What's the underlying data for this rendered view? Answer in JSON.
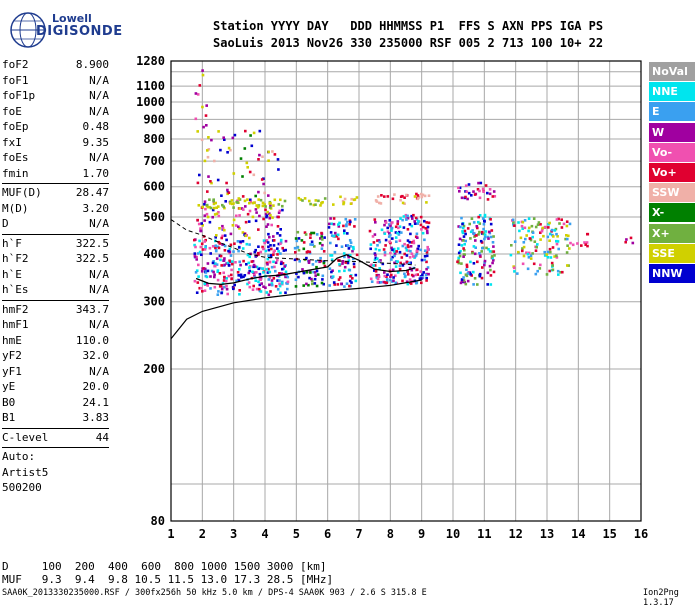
{
  "logo": {
    "line1": "Lowell",
    "line2": "DIGISONDE"
  },
  "header": {
    "labels": "Station YYYY DAY   DDD HHMMSS P1  FFS S AXN PPS IGA PS",
    "values": "SaoLuis 2013 Nov26 330 235000 RSF 005 2 713 100 10+ 22"
  },
  "params_group1": [
    {
      "name": "foF2",
      "value": "8.900"
    },
    {
      "name": "foF1",
      "value": "N/A"
    },
    {
      "name": "foF1p",
      "value": "N/A"
    },
    {
      "name": "foE",
      "value": "N/A"
    },
    {
      "name": "foEp",
      "value": "0.48"
    },
    {
      "name": "fxI",
      "value": "9.35"
    },
    {
      "name": "foEs",
      "value": "N/A"
    },
    {
      "name": "fmin",
      "value": "1.70"
    }
  ],
  "params_group2": [
    {
      "name": "MUF(D)",
      "value": "28.47"
    },
    {
      "name": "M(D)",
      "value": "3.20"
    },
    {
      "name": "D",
      "value": "N/A"
    }
  ],
  "params_group3": [
    {
      "name": "h`F",
      "value": "322.5"
    },
    {
      "name": "h`F2",
      "value": "322.5"
    },
    {
      "name": "h`E",
      "value": "N/A"
    },
    {
      "name": "h`Es",
      "value": "N/A"
    }
  ],
  "params_group4": [
    {
      "name": "hmF2",
      "value": "343.7"
    },
    {
      "name": "hmF1",
      "value": "N/A"
    },
    {
      "name": "hmE",
      "value": "110.0"
    },
    {
      "name": "yF2",
      "value": "32.0"
    },
    {
      "name": "yF1",
      "value": "N/A"
    },
    {
      "name": "yE",
      "value": "20.0"
    },
    {
      "name": "B0",
      "value": "24.1"
    },
    {
      "name": "B1",
      "value": "3.83"
    }
  ],
  "clevel": {
    "name": "C-level",
    "value": "44"
  },
  "auto": {
    "line1": "Auto:",
    "line2": "Artist5",
    "line3": "500200"
  },
  "legend": [
    {
      "label": "NoVal",
      "color": "#a0a0a0"
    },
    {
      "label": "NNE",
      "color": "#00e5ee"
    },
    {
      "label": "E",
      "color": "#3aa0f0"
    },
    {
      "label": "W",
      "color": "#a000a0"
    },
    {
      "label": "Vo-",
      "color": "#f050b0"
    },
    {
      "label": "Vo+",
      "color": "#e00030"
    },
    {
      "label": "SSW",
      "color": "#f0b0a8"
    },
    {
      "label": "X-",
      "color": "#008000"
    },
    {
      "label": "X+",
      "color": "#70b040"
    },
    {
      "label": "SSE",
      "color": "#d0d000"
    },
    {
      "label": "NNW",
      "color": "#0000d0"
    }
  ],
  "bottom": {
    "d_row": "D     100  200  400  600  800 1000 1500 3000 [km]",
    "muf_row": "MUF   9.3  9.4  9.8 10.5 11.5 13.0 17.3 28.5 [MHz]"
  },
  "footer": {
    "left": "SAA0K_2013330235000.RSF / 300fx256h 50 kHz 5.0 km / DPS-4 SAA0K 903 / 2.6 S 315.8 E",
    "right": "Ion2Png 1.3.17"
  },
  "chart_data": {
    "type": "scatter",
    "x_ticks": [
      1,
      2,
      3,
      4,
      5,
      6,
      7,
      8,
      9,
      10,
      11,
      12,
      13,
      14,
      15,
      16
    ],
    "y_ticks": [
      80,
      200,
      300,
      400,
      500,
      600,
      700,
      800,
      900,
      1000,
      1100,
      1280
    ],
    "xlim": [
      1,
      16
    ],
    "y_scale": "log",
    "ylim": [
      80,
      1280
    ],
    "grid": true,
    "echo_regions": [
      {
        "x": [
          1.7,
          4.7
        ],
        "y": [
          315,
          440
        ],
        "colors": [
          "#e00030",
          "#f050b0",
          "#a000a0",
          "#0000d0",
          "#3aa0f0",
          "#00e5ee"
        ],
        "density": 0.55
      },
      {
        "x": [
          1.8,
          4.6
        ],
        "y": [
          440,
          560
        ],
        "colors": [
          "#a000a0",
          "#e00030",
          "#0000d0",
          "#d0d000",
          "#f050b0"
        ],
        "density": 0.25
      },
      {
        "x": [
          1.8,
          4.6
        ],
        "y": [
          530,
          560
        ],
        "colors": [
          "#d0d000",
          "#d0d000",
          "#70b040"
        ],
        "density": 0.6
      },
      {
        "x": [
          1.8,
          4.4
        ],
        "y": [
          560,
          850
        ],
        "colors": [
          "#a000a0",
          "#d0d000",
          "#e00030",
          "#008000",
          "#0000d0",
          "#f0b0a8"
        ],
        "density": 0.1
      },
      {
        "x": [
          1.7,
          2.1
        ],
        "y": [
          850,
          1270
        ],
        "colors": [
          "#e00030",
          "#a000a0",
          "#d0d000",
          "#f050b0"
        ],
        "density": 0.12
      },
      {
        "x": [
          4.9,
          5.9
        ],
        "y": [
          330,
          460
        ],
        "colors": [
          "#e00030",
          "#0000d0",
          "#3aa0f0",
          "#a000a0",
          "#008000",
          "#70b040"
        ],
        "density": 0.45
      },
      {
        "x": [
          5.0,
          5.9
        ],
        "y": [
          540,
          570
        ],
        "colors": [
          "#d0d000",
          "#70b040"
        ],
        "density": 0.5
      },
      {
        "x": [
          6.0,
          6.9
        ],
        "y": [
          330,
          500
        ],
        "colors": [
          "#e00030",
          "#a000a0",
          "#0000d0",
          "#3aa0f0",
          "#00e5ee"
        ],
        "density": 0.45
      },
      {
        "x": [
          6.1,
          6.9
        ],
        "y": [
          540,
          570
        ],
        "colors": [
          "#d0d000",
          "#f0b0a8"
        ],
        "density": 0.5
      },
      {
        "x": [
          7.3,
          9.2
        ],
        "y": [
          335,
          510
        ],
        "colors": [
          "#3aa0f0",
          "#00e5ee",
          "#0000d0",
          "#e00030",
          "#a000a0",
          "#f050b0"
        ],
        "density": 0.55
      },
      {
        "x": [
          7.5,
          9.2
        ],
        "y": [
          545,
          580
        ],
        "colors": [
          "#f0b0a8",
          "#d0d000",
          "#e00030"
        ],
        "density": 0.5
      },
      {
        "x": [
          10.1,
          11.3
        ],
        "y": [
          335,
          510
        ],
        "colors": [
          "#3aa0f0",
          "#00e5ee",
          "#0000d0",
          "#a000a0",
          "#e00030",
          "#70b040"
        ],
        "density": 0.5
      },
      {
        "x": [
          10.1,
          11.3
        ],
        "y": [
          560,
          620
        ],
        "colors": [
          "#e00030",
          "#a000a0",
          "#f050b0",
          "#0000d0"
        ],
        "density": 0.45
      },
      {
        "x": [
          11.8,
          13.7
        ],
        "y": [
          355,
          500
        ],
        "colors": [
          "#3aa0f0",
          "#00e5ee",
          "#f050b0",
          "#e00030",
          "#d0d000",
          "#70b040"
        ],
        "density": 0.35
      },
      {
        "x": [
          13.7,
          14.3
        ],
        "y": [
          420,
          455
        ],
        "colors": [
          "#e00030",
          "#f050b0"
        ],
        "density": 0.35
      },
      {
        "x": [
          15.4,
          15.7
        ],
        "y": [
          420,
          445
        ],
        "colors": [
          "#e00030",
          "#a000a0"
        ],
        "density": 0.4
      }
    ],
    "trace_lower": [
      [
        1.0,
        240
      ],
      [
        1.5,
        270
      ],
      [
        2.0,
        283
      ],
      [
        3.0,
        298
      ],
      [
        4.0,
        307
      ],
      [
        5.0,
        314
      ],
      [
        6.0,
        320
      ],
      [
        7.0,
        325
      ],
      [
        8.0,
        331
      ],
      [
        9.0,
        342
      ]
    ],
    "trace_upper": [
      [
        1.0,
        492
      ],
      [
        1.5,
        462
      ],
      [
        2.0,
        448
      ],
      [
        2.5,
        430
      ],
      [
        3.0,
        415
      ],
      [
        3.5,
        400
      ],
      [
        4.0,
        392
      ],
      [
        4.5,
        390
      ],
      [
        5.0,
        388
      ],
      [
        5.5,
        386
      ],
      [
        6.0,
        384
      ],
      [
        6.5,
        383
      ],
      [
        7.0,
        382
      ],
      [
        7.5,
        380
      ],
      [
        8.0,
        378
      ],
      [
        8.5,
        376
      ],
      [
        8.8,
        374
      ]
    ],
    "trace_main": [
      [
        1.8,
        345
      ],
      [
        2.2,
        335
      ],
      [
        2.6,
        333
      ],
      [
        3.0,
        336
      ],
      [
        3.5,
        344
      ],
      [
        4.0,
        350
      ],
      [
        4.5,
        352
      ],
      [
        5.0,
        358
      ],
      [
        5.5,
        364
      ],
      [
        6.0,
        370
      ],
      [
        6.3,
        390
      ],
      [
        6.6,
        398
      ],
      [
        7.0,
        385
      ],
      [
        7.5,
        365
      ],
      [
        8.0,
        360
      ],
      [
        8.5,
        362
      ],
      [
        8.8,
        368
      ]
    ]
  }
}
